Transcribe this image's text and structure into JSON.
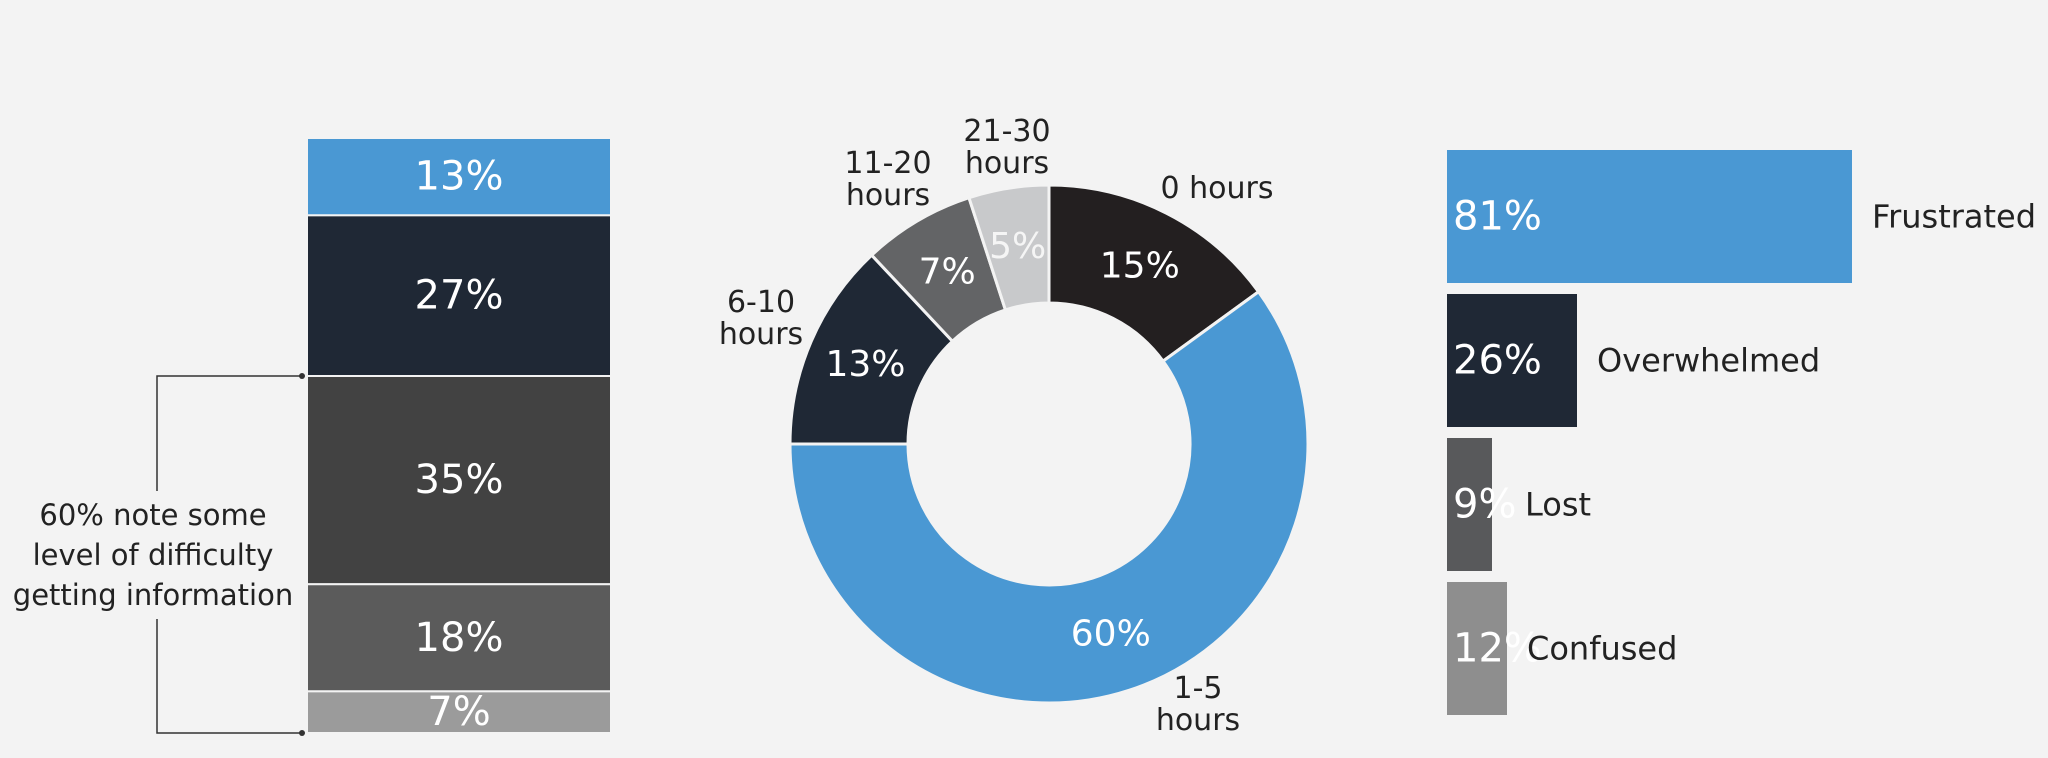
{
  "chart_data": [
    {
      "type": "stacked-bar",
      "values": [
        13,
        27,
        35,
        18,
        7
      ],
      "value_labels": [
        "13%",
        "27%",
        "35%",
        "18%",
        "7%"
      ],
      "colors": [
        "#4a98d3",
        "#1f2835",
        "#424242",
        "#5b5b5b",
        "#9b9b9b"
      ],
      "annotation": "60% note some level of difficulty getting information"
    },
    {
      "type": "donut",
      "categories": [
        "0 hours",
        "1-5 hours",
        "6-10 hours",
        "11-20 hours",
        "21-30 hours"
      ],
      "values": [
        15,
        60,
        13,
        7,
        5
      ],
      "value_labels": [
        "15%",
        "60%",
        "13%",
        "7%",
        "5%"
      ],
      "colors": [
        "#231f20",
        "#4a98d3",
        "#1f2835",
        "#636466",
        "#c8c9cb"
      ]
    },
    {
      "type": "hbar",
      "categories": [
        "Frustrated",
        "Overwhelmed",
        "Lost",
        "Confused"
      ],
      "values": [
        81,
        26,
        9,
        12
      ],
      "value_labels": [
        "81%",
        "26%",
        "9%",
        "12%"
      ],
      "colors": [
        "#4a98d3",
        "#1f2835",
        "#58595b",
        "#8e8e8e"
      ]
    }
  ]
}
